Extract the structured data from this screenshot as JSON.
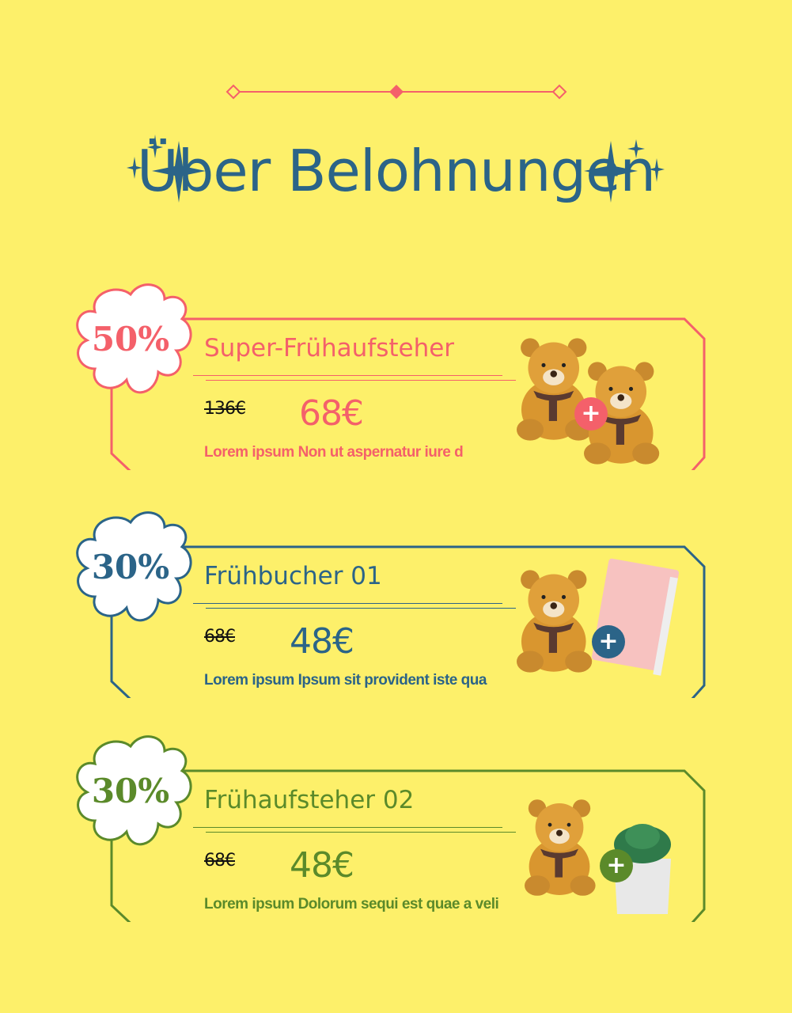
{
  "title": "Über Belohnungen",
  "colors": {
    "background": "#fdf06a",
    "coral": "#f4606a",
    "blue": "#2b6488",
    "green": "#5b8a2a"
  },
  "cards": [
    {
      "discount": "50%",
      "name": "Super-Frühaufsteher",
      "old_price": "136€",
      "new_price": "68€",
      "description": "Lorem ipsum Non ut aspernatur iure d",
      "color": "#f4606a",
      "items": [
        "teddy-bear",
        "teddy-bear"
      ]
    },
    {
      "discount": "30%",
      "name": "Frühbucher 01",
      "old_price": "68€",
      "new_price": "48€",
      "description": "Lorem ipsum Ipsum sit provident iste qua",
      "color": "#2b6488",
      "items": [
        "teddy-bear",
        "notebook"
      ]
    },
    {
      "discount": "30%",
      "name": "Frühaufsteher 02",
      "old_price": "68€",
      "new_price": "48€",
      "description": "Lorem ipsum Dolorum sequi est quae a veli",
      "color": "#5b8a2a",
      "items": [
        "teddy-bear",
        "succulent-plant"
      ]
    }
  ]
}
